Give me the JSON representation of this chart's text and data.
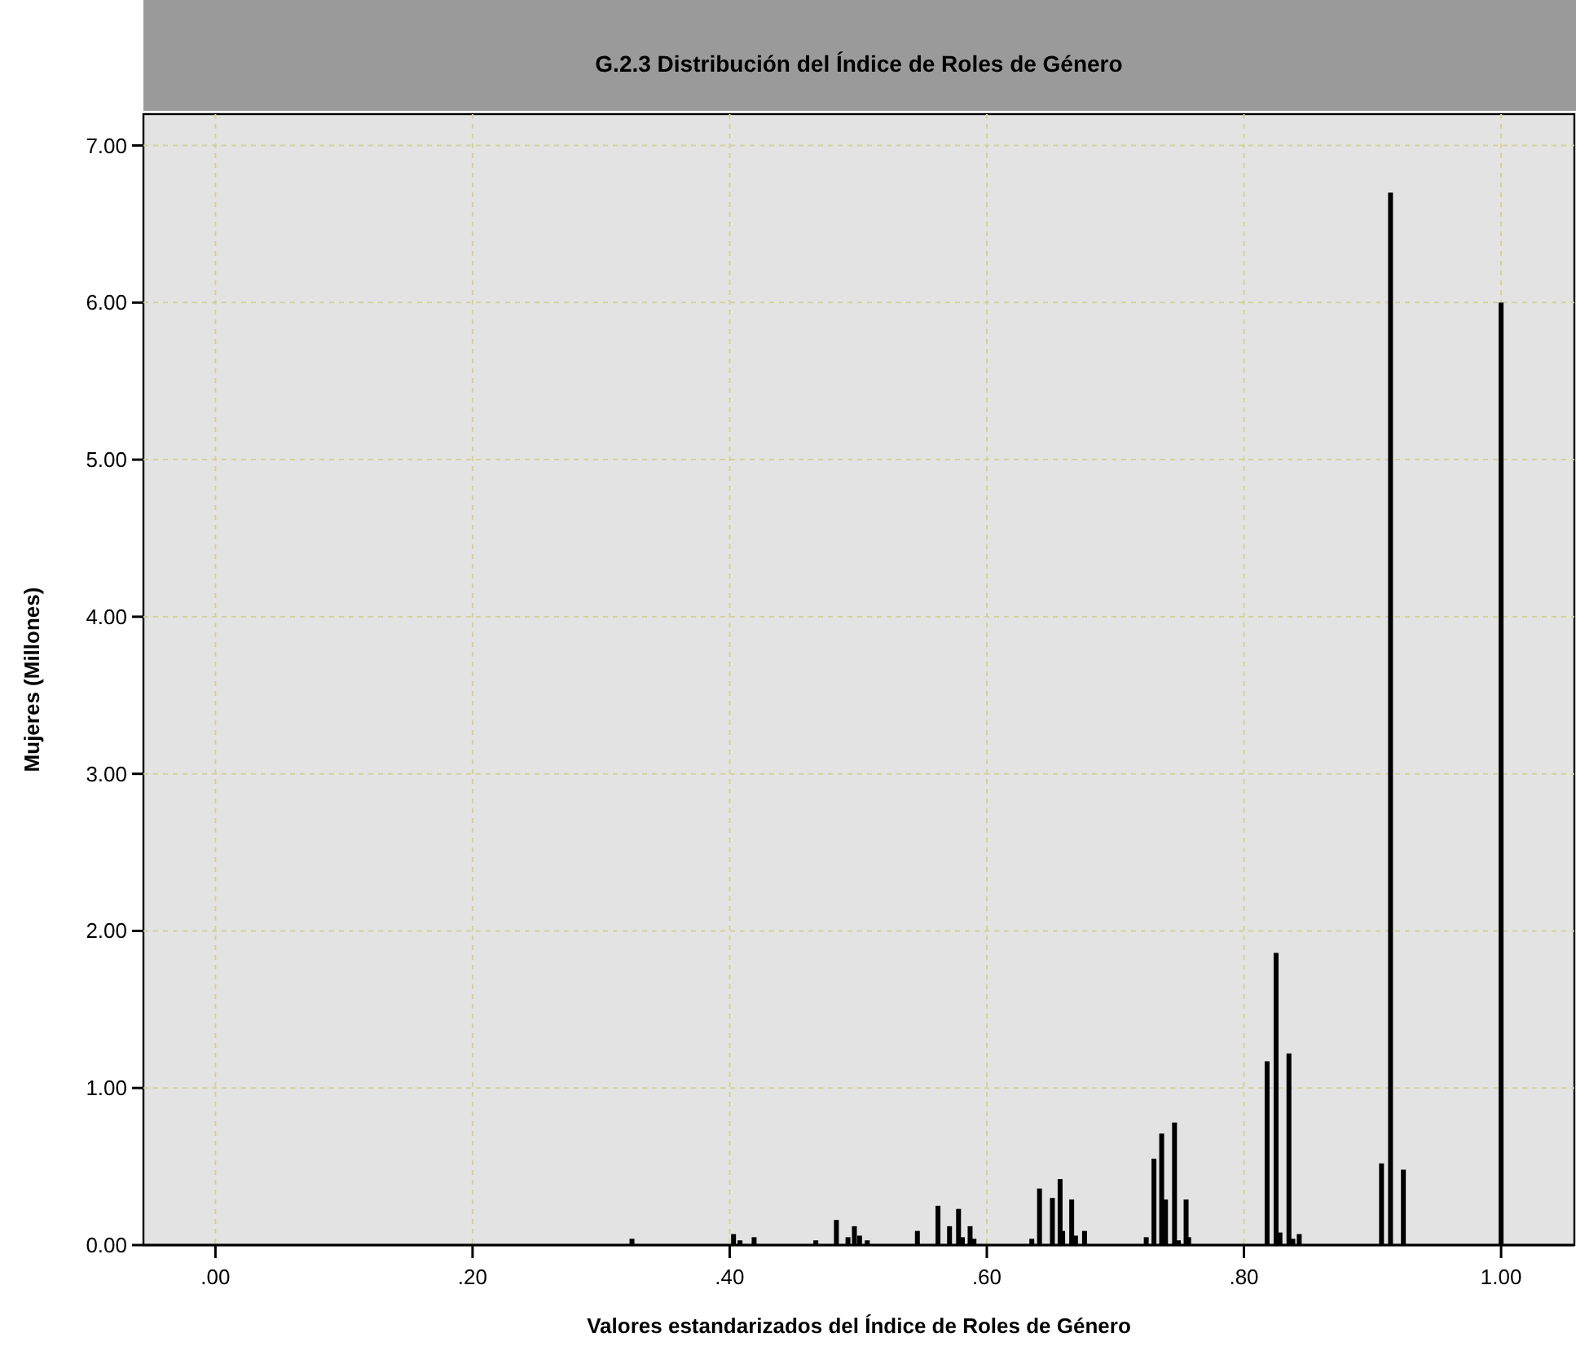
{
  "chart_data": {
    "type": "bar",
    "title": "G.2.3 Distribución del Índice de Roles de Género",
    "xlabel": "Valores estandarizados del Índice de Roles de Género",
    "ylabel": "Mujeres (Millones)",
    "x": [
      0.324,
      0.403,
      0.408,
      0.419,
      0.467,
      0.483,
      0.492,
      0.497,
      0.501,
      0.507,
      0.546,
      0.562,
      0.571,
      0.578,
      0.581,
      0.587,
      0.59,
      0.635,
      0.641,
      0.651,
      0.657,
      0.659,
      0.666,
      0.669,
      0.676,
      0.724,
      0.73,
      0.736,
      0.739,
      0.746,
      0.749,
      0.755,
      0.757,
      0.818,
      0.825,
      0.828,
      0.835,
      0.838,
      0.843,
      0.907,
      0.914,
      0.924,
      1.0
    ],
    "values": [
      0.04,
      0.07,
      0.03,
      0.05,
      0.03,
      0.16,
      0.05,
      0.12,
      0.06,
      0.03,
      0.09,
      0.25,
      0.12,
      0.23,
      0.05,
      0.12,
      0.04,
      0.04,
      0.36,
      0.3,
      0.42,
      0.09,
      0.29,
      0.06,
      0.09,
      0.05,
      0.55,
      0.71,
      0.29,
      0.78,
      0.03,
      0.29,
      0.05,
      1.17,
      1.86,
      0.08,
      1.22,
      0.04,
      0.07,
      0.52,
      6.7,
      0.48,
      6.0
    ],
    "color": "#000000",
    "xlim": [
      -0.056,
      1.057
    ],
    "ylim": [
      0,
      7.2
    ],
    "xticks": [
      {
        "value": 0,
        "label": ".00"
      },
      {
        "value": 0.2,
        "label": ".20"
      },
      {
        "value": 0.4,
        "label": ".40"
      },
      {
        "value": 0.6,
        "label": ".60"
      },
      {
        "value": 0.8,
        "label": ".80"
      },
      {
        "value": 1,
        "label": "1.00"
      }
    ],
    "yticks": [
      {
        "value": 0,
        "label": "0.00"
      },
      {
        "value": 1,
        "label": "1.00"
      },
      {
        "value": 2,
        "label": "2.00"
      },
      {
        "value": 3,
        "label": "3.00"
      },
      {
        "value": 4,
        "label": "4.00"
      },
      {
        "value": 5,
        "label": "5.00"
      },
      {
        "value": 6,
        "label": "6.00"
      },
      {
        "value": 7,
        "label": "7.00"
      }
    ],
    "grid": true
  }
}
